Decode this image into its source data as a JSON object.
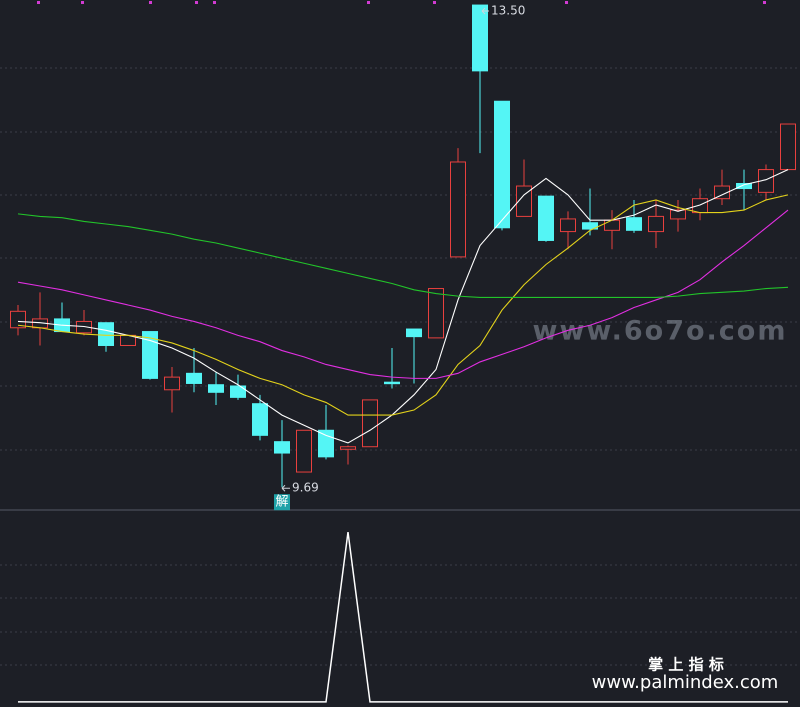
{
  "chart_data": [
    {
      "type": "candlestick",
      "ylim": [
        9.51,
        13.54
      ],
      "up_color": "#e8403e",
      "down_color": "#54f5f5",
      "open": [
        10.95,
        10.95,
        11.02,
        10.91,
        10.99,
        10.81,
        10.92,
        10.46,
        10.59,
        10.5,
        10.49,
        10.35,
        10.05,
        9.81,
        10.14,
        9.99,
        10.01,
        10.52,
        10.94,
        10.87,
        11.51,
        13.5,
        12.74,
        11.83,
        11.99,
        11.71,
        11.78,
        11.72,
        11.82,
        11.71,
        11.81,
        11.86,
        11.97,
        12.09,
        12.02,
        12.2
      ],
      "high": [
        11.13,
        11.23,
        11.15,
        11.09,
        10.99,
        10.89,
        10.92,
        10.64,
        10.79,
        10.6,
        10.58,
        10.42,
        10.22,
        10.14,
        10.34,
        10.02,
        10.38,
        10.79,
        10.94,
        11.26,
        12.37,
        13.5,
        12.74,
        12.28,
        11.99,
        11.87,
        12.05,
        11.88,
        11.96,
        11.96,
        11.96,
        12.05,
        12.2,
        12.2,
        12.24,
        12.56
      ],
      "low": [
        10.89,
        10.81,
        10.92,
        10.89,
        10.76,
        10.81,
        10.54,
        10.28,
        10.44,
        10.34,
        10.38,
        10.06,
        9.69,
        9.81,
        9.91,
        9.87,
        10.01,
        10.47,
        10.51,
        10.87,
        11.51,
        12.33,
        11.72,
        11.83,
        11.63,
        11.57,
        11.68,
        11.57,
        11.7,
        11.58,
        11.71,
        11.8,
        11.92,
        11.88,
        11.96,
        12.2
      ],
      "close": [
        11.08,
        11.02,
        10.92,
        11.0,
        10.81,
        10.89,
        10.55,
        10.56,
        10.51,
        10.44,
        10.4,
        10.1,
        9.96,
        10.14,
        9.93,
        10.01,
        10.38,
        10.51,
        10.88,
        11.26,
        12.26,
        12.98,
        11.74,
        12.07,
        11.64,
        11.81,
        11.73,
        11.8,
        11.72,
        11.83,
        11.88,
        11.97,
        12.07,
        12.05,
        12.2,
        12.56
      ],
      "series": [
        {
          "color": "#ffffff",
          "values": [
            11.0,
            10.99,
            10.97,
            10.96,
            10.93,
            10.89,
            10.85,
            10.79,
            10.71,
            10.6,
            10.5,
            10.38,
            10.26,
            10.18,
            10.1,
            10.04,
            10.14,
            10.26,
            10.42,
            10.62,
            11.17,
            11.6,
            11.8,
            12.0,
            12.13,
            12.0,
            11.8,
            11.8,
            11.84,
            11.92,
            11.87,
            11.92,
            12.0,
            12.08,
            12.12,
            12.2
          ]
        },
        {
          "color": "#e3d21b",
          "values": [
            10.97,
            10.95,
            10.92,
            10.9,
            10.89,
            10.89,
            10.87,
            10.83,
            10.77,
            10.7,
            10.62,
            10.55,
            10.5,
            10.42,
            10.36,
            10.26,
            10.26,
            10.26,
            10.3,
            10.42,
            10.66,
            10.81,
            11.09,
            11.29,
            11.45,
            11.58,
            11.72,
            11.8,
            11.92,
            11.96,
            11.9,
            11.86,
            11.86,
            11.88,
            11.96,
            12.0
          ]
        },
        {
          "color": "#e22fe2",
          "values": [
            11.31,
            11.28,
            11.25,
            11.21,
            11.17,
            11.13,
            11.09,
            11.04,
            11.0,
            10.95,
            10.89,
            10.84,
            10.77,
            10.72,
            10.66,
            10.62,
            10.58,
            10.56,
            10.55,
            10.55,
            10.59,
            10.68,
            10.74,
            10.8,
            10.87,
            10.93,
            10.97,
            11.03,
            11.11,
            11.17,
            11.23,
            11.33,
            11.47,
            11.6,
            11.74,
            11.88
          ]
        },
        {
          "color": "#22c42a",
          "values": [
            11.85,
            11.83,
            11.82,
            11.79,
            11.77,
            11.75,
            11.72,
            11.69,
            11.65,
            11.62,
            11.58,
            11.54,
            11.5,
            11.46,
            11.42,
            11.38,
            11.34,
            11.3,
            11.25,
            11.22,
            11.2,
            11.19,
            11.19,
            11.19,
            11.19,
            11.19,
            11.19,
            11.19,
            11.19,
            11.19,
            11.2,
            11.22,
            11.23,
            11.24,
            11.26,
            11.27
          ]
        }
      ],
      "high_label": "13.50",
      "low_label": "9.69",
      "signal_label": "解"
    },
    {
      "type": "line",
      "ylim": [
        -0.03,
        1.13
      ],
      "color": "#ffffff",
      "values": [
        0,
        0,
        0,
        0,
        0,
        0,
        0,
        0,
        0,
        0,
        0,
        0,
        0,
        0,
        0,
        1,
        0,
        0,
        0,
        0,
        0,
        0,
        0,
        0,
        0,
        0,
        0,
        0,
        0,
        0,
        0,
        0,
        0,
        0,
        0,
        0
      ]
    }
  ],
  "watermarks": {
    "site": "www.6o7o.com",
    "brand": "掌 上 指 标",
    "url": "www.palmindex.com"
  }
}
